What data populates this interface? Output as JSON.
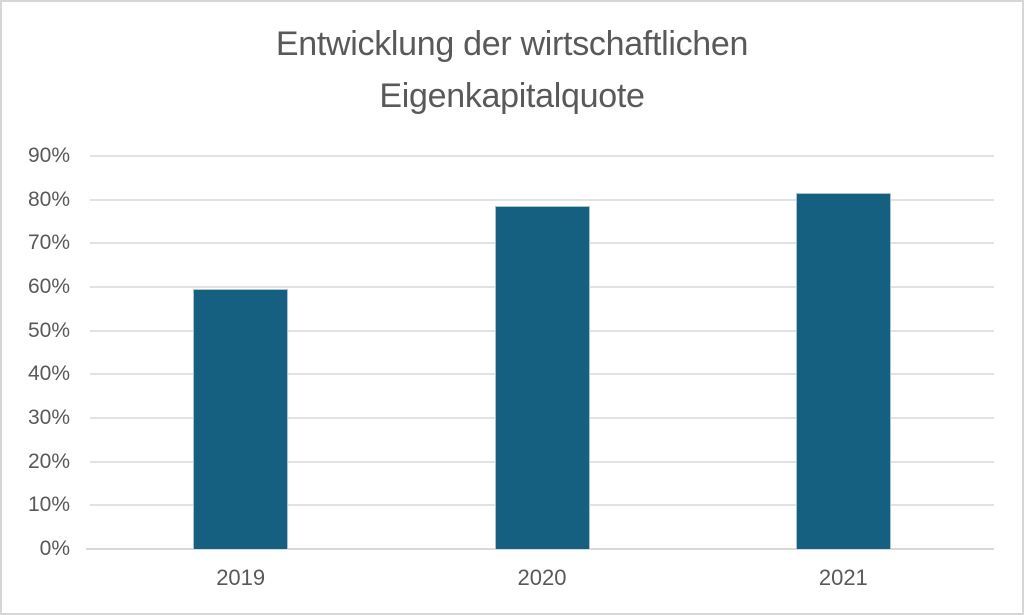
{
  "window": {
    "background": "#ffffff",
    "border_color": "#d6d6d6"
  },
  "chart_data": {
    "type": "bar",
    "title": "Entwicklung der wirtschaftlichen Eigenkapitalquote",
    "categories": [
      "2019",
      "2020",
      "2021"
    ],
    "values": [
      59.5,
      78.5,
      81.5
    ],
    "value_unit": "%",
    "ylim": [
      0,
      90
    ],
    "ytick_step": 10,
    "ytick_labels": [
      "0%",
      "10%",
      "20%",
      "30%",
      "40%",
      "50%",
      "60%",
      "70%",
      "80%",
      "90%"
    ],
    "xlabel": "",
    "ylabel": "",
    "grid": true,
    "legend_position": "none",
    "bar_color": "#156081",
    "bar_border_color": "#a9c4d1",
    "gridline_color": "#e2e2e2",
    "axis_line_color": "#d9d9d9",
    "text_color": "#595959"
  }
}
